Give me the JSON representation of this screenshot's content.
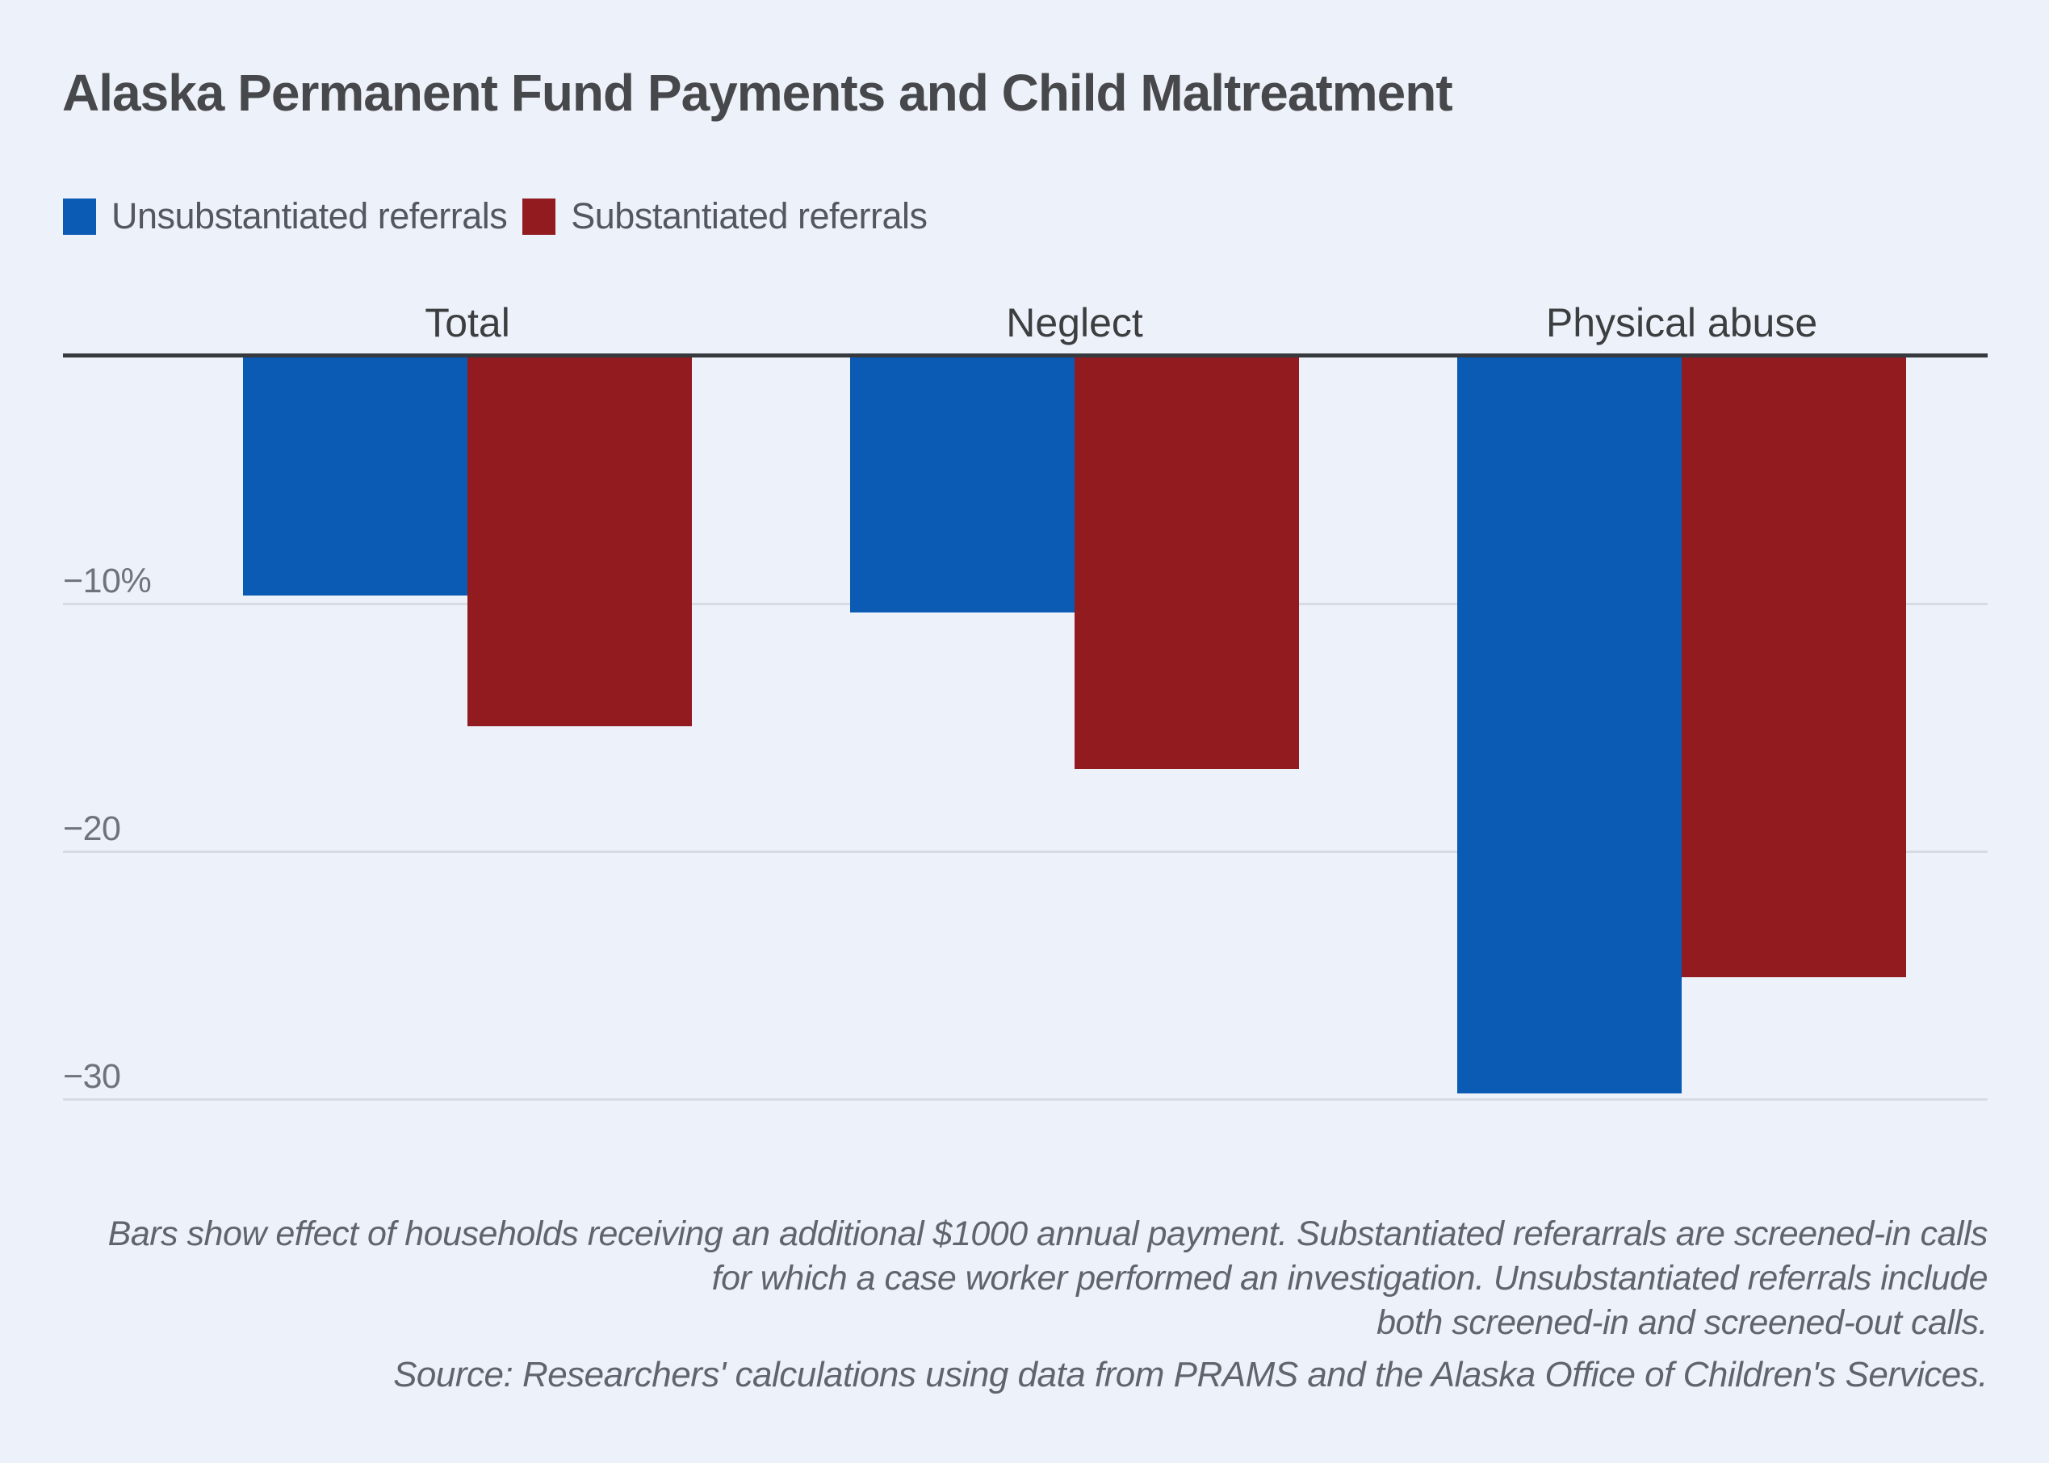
{
  "title": "Alaska Permanent Fund Payments and Child Maltreatment",
  "chart_data": {
    "type": "bar",
    "categories": [
      "Total",
      "Neglect",
      "Physical abuse"
    ],
    "series": [
      {
        "name": "Unsubstantiated referrals",
        "color": "#0b5ab3",
        "values": [
          -9.6,
          -10.3,
          -29.7
        ]
      },
      {
        "name": "Substantiated referrals",
        "color": "#921b20",
        "values": [
          -14.9,
          -16.6,
          -25.0
        ]
      }
    ],
    "y_axis": {
      "unit": "percent",
      "range": [
        -32,
        0
      ],
      "ticks": [
        {
          "label": "−10%",
          "value": -10
        },
        {
          "label": "−20",
          "value": -20
        },
        {
          "label": "−30",
          "value": -30
        }
      ]
    },
    "baseline_value": 0,
    "grid": true,
    "legend_position": "top-left",
    "background_color": "#edf2fa"
  },
  "notes": {
    "line1": "Bars show effect of households receiving an additional $1000 annual payment. Substantiated referarrals are screened-in calls",
    "line2": "for which a case worker performed an investigation. Unsubstantiated referrals include",
    "line3": "both screened-in and screened-out calls.",
    "source": "Source: Researchers' calculations using data from PRAMS and the Alaska Office of Children's Services."
  }
}
